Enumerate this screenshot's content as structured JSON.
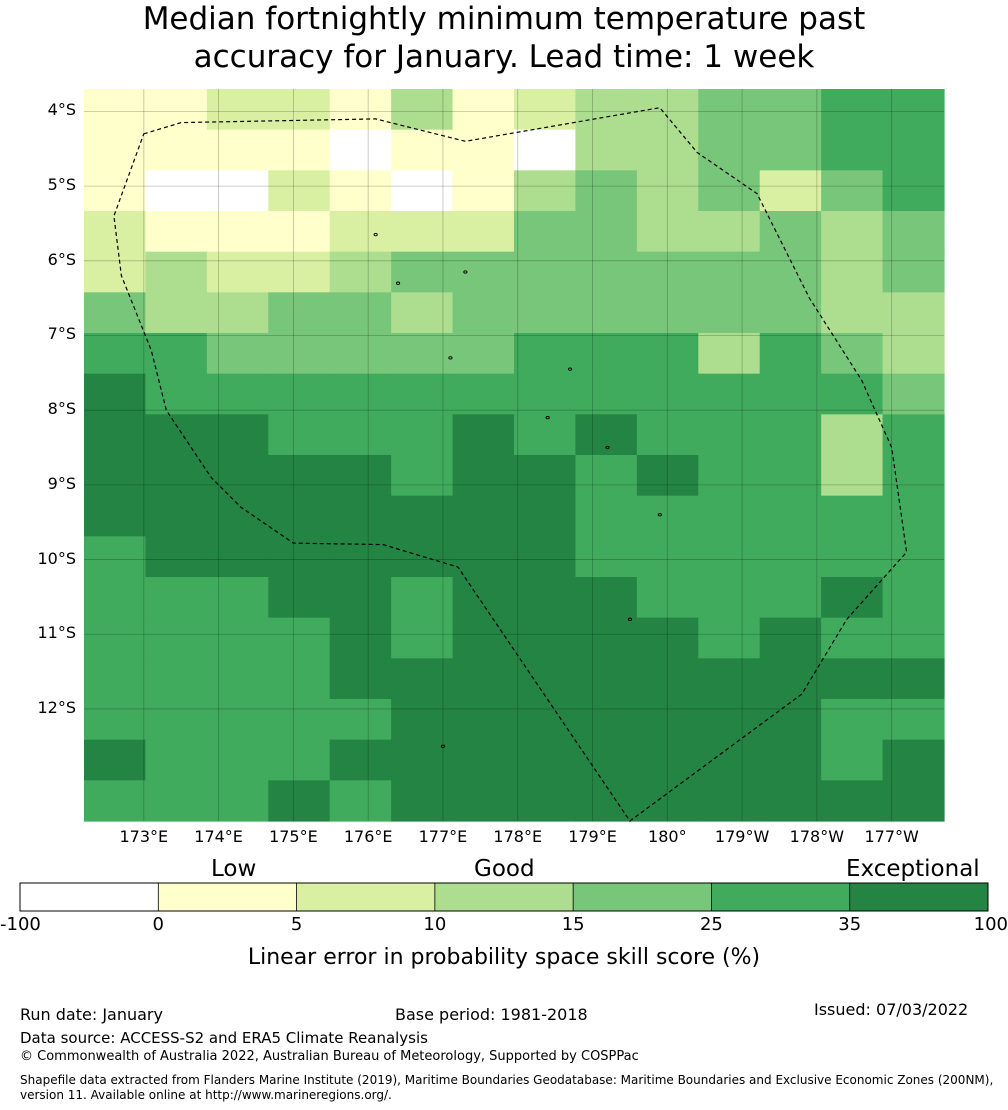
{
  "title": {
    "line1": "Median fortnightly minimum temperature past",
    "line2": "accuracy for January. Lead time: 1 week"
  },
  "map": {
    "lat_labels": [
      "4°S",
      "5°S",
      "6°S",
      "7°S",
      "8°S",
      "9°S",
      "10°S",
      "11°S",
      "12°S"
    ],
    "lat_values": [
      -4,
      -5,
      -6,
      -7,
      -8,
      -9,
      -10,
      -11,
      -12
    ],
    "lat_range": [
      -13.5,
      -3.7
    ],
    "lon_labels": [
      "173°E",
      "174°E",
      "175°E",
      "176°E",
      "177°E",
      "178°E",
      "179°E",
      "180°",
      "179°W",
      "178°W",
      "177°W"
    ],
    "lon_values": [
      173,
      174,
      175,
      176,
      177,
      178,
      179,
      180,
      181,
      182,
      183
    ],
    "lon_range": [
      172.2,
      183.7
    ],
    "grid_cols": 14,
    "grid_rows": 18,
    "category_grid": [
      [
        1,
        1,
        2,
        2,
        1,
        3,
        1,
        2,
        3,
        3,
        4,
        4,
        5,
        5
      ],
      [
        1,
        1,
        1,
        1,
        0,
        1,
        1,
        0,
        3,
        3,
        4,
        4,
        5,
        5
      ],
      [
        1,
        0,
        0,
        2,
        1,
        0,
        1,
        3,
        4,
        3,
        4,
        2,
        4,
        5
      ],
      [
        2,
        1,
        1,
        1,
        2,
        2,
        2,
        4,
        4,
        3,
        3,
        4,
        3,
        4
      ],
      [
        2,
        3,
        2,
        2,
        3,
        4,
        4,
        4,
        4,
        4,
        4,
        4,
        3,
        4
      ],
      [
        4,
        3,
        3,
        4,
        4,
        3,
        4,
        4,
        4,
        4,
        4,
        4,
        3,
        3
      ],
      [
        5,
        5,
        4,
        4,
        4,
        4,
        4,
        5,
        5,
        5,
        3,
        5,
        4,
        3
      ],
      [
        6,
        5,
        5,
        5,
        5,
        5,
        5,
        5,
        5,
        5,
        5,
        5,
        5,
        4
      ],
      [
        6,
        6,
        6,
        5,
        5,
        5,
        6,
        5,
        6,
        5,
        5,
        5,
        3,
        5
      ],
      [
        6,
        6,
        6,
        6,
        6,
        5,
        6,
        6,
        5,
        6,
        5,
        5,
        3,
        5
      ],
      [
        6,
        6,
        6,
        6,
        6,
        6,
        6,
        6,
        5,
        5,
        5,
        5,
        5,
        5
      ],
      [
        5,
        6,
        6,
        6,
        6,
        6,
        6,
        6,
        5,
        5,
        5,
        5,
        5,
        5
      ],
      [
        5,
        5,
        5,
        6,
        6,
        5,
        6,
        6,
        6,
        5,
        5,
        5,
        6,
        5
      ],
      [
        5,
        5,
        5,
        5,
        6,
        5,
        6,
        6,
        6,
        6,
        5,
        6,
        5,
        5
      ],
      [
        5,
        5,
        5,
        5,
        6,
        6,
        6,
        6,
        6,
        6,
        6,
        6,
        6,
        6
      ],
      [
        5,
        5,
        5,
        5,
        5,
        6,
        6,
        6,
        6,
        6,
        6,
        6,
        5,
        5
      ],
      [
        6,
        5,
        5,
        5,
        6,
        6,
        6,
        6,
        6,
        6,
        6,
        6,
        5,
        6
      ],
      [
        5,
        5,
        5,
        6,
        5,
        6,
        6,
        6,
        6,
        6,
        6,
        6,
        6,
        6
      ]
    ],
    "eez_boundary": [
      [
        173.0,
        -4.3
      ],
      [
        173.5,
        -4.15
      ],
      [
        176.1,
        -4.1
      ],
      [
        177.3,
        -4.4
      ],
      [
        179.9,
        -3.95
      ],
      [
        180.4,
        -4.55
      ],
      [
        181.2,
        -5.1
      ],
      [
        181.9,
        -6.5
      ],
      [
        182.6,
        -7.6
      ],
      [
        183.0,
        -8.5
      ],
      [
        183.2,
        -9.9
      ],
      [
        182.4,
        -10.8
      ],
      [
        181.8,
        -11.8
      ],
      [
        179.5,
        -13.5
      ],
      [
        177.2,
        -10.1
      ],
      [
        176.2,
        -9.8
      ],
      [
        175.0,
        -9.78
      ],
      [
        174.3,
        -9.3
      ],
      [
        173.9,
        -8.9
      ],
      [
        173.3,
        -8.0
      ],
      [
        173.1,
        -7.2
      ],
      [
        172.7,
        -6.2
      ],
      [
        172.6,
        -5.4
      ],
      [
        173.0,
        -4.3
      ]
    ],
    "islands": [
      [
        176.1,
        -5.65
      ],
      [
        177.3,
        -6.15
      ],
      [
        176.4,
        -6.3
      ],
      [
        177.1,
        -7.3
      ],
      [
        178.7,
        -7.45
      ],
      [
        178.4,
        -8.1
      ],
      [
        179.2,
        -8.5
      ],
      [
        179.9,
        -9.4
      ],
      [
        179.5,
        -10.8
      ],
      [
        177.0,
        -12.5
      ]
    ]
  },
  "legend": {
    "category_labels": [
      "Low",
      "Good",
      "Exceptional"
    ],
    "bins": [
      "-100",
      "0",
      "5",
      "10",
      "15",
      "25",
      "35",
      "100"
    ],
    "colors": [
      "#ffffff",
      "#ffffcc",
      "#d9f0a3",
      "#addd8e",
      "#78c679",
      "#41ab5d",
      "#238443"
    ],
    "title": "Linear error in probability space skill score (%)"
  },
  "footer": {
    "run_date": "Run date: January",
    "base_period": "Base period: 1981-2018",
    "issued": "Issued: 07/03/2022",
    "data_source": "Data source: ACCESS-S2 and ERA5 Climate Reanalysis",
    "copyright": "© Commonwealth of Australia 2022, Australian Bureau of Meteorology, Supported by COSPPac",
    "shapefile_line1": "Shapefile data extracted from Flanders Marine Institute (2019), Maritime Boundaries Geodatabase: Maritime Boundaries and Exclusive Economic Zones (200NM),",
    "shapefile_line2": "version 11. Available online at http://www.marineregions.org/."
  }
}
